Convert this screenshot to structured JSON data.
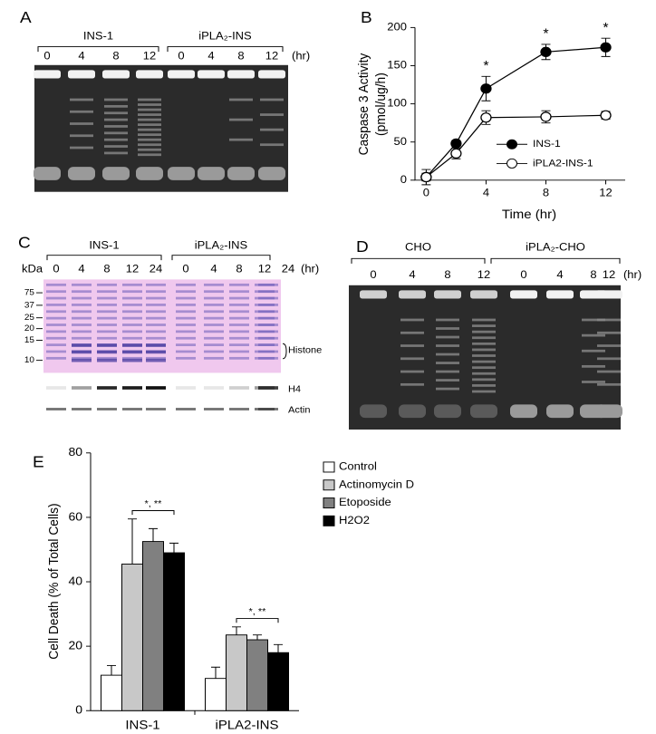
{
  "panel_letters": [
    "A",
    "B",
    "C",
    "D",
    "E"
  ],
  "gel_a": {
    "groups": [
      "INS-1",
      "iPLA₂-INS"
    ],
    "lanes": [
      "0",
      "4",
      "8",
      "12",
      "0",
      "4",
      "8",
      "12"
    ],
    "unit": "(hr)"
  },
  "gel_c": {
    "groups": [
      "INS-1",
      "iPLA₂-INS"
    ],
    "lanes": [
      "0",
      "4",
      "8",
      "12",
      "24",
      "0",
      "4",
      "8",
      "12",
      "24"
    ],
    "unit": "(hr)",
    "marker_unit": "kDa",
    "markers": [
      "75",
      "37",
      "25",
      "20",
      "15",
      "10"
    ],
    "labels": [
      "Histone",
      "H4",
      "Actin"
    ]
  },
  "gel_d": {
    "groups": [
      "CHO",
      "iPLA₂-CHO"
    ],
    "lanes": [
      "0",
      "4",
      "8",
      "12",
      "0",
      "4",
      "8",
      "12"
    ],
    "unit": "(hr)"
  },
  "chart_data": [
    {
      "type": "line",
      "x": [
        0,
        2,
        4,
        8,
        12
      ],
      "series": [
        {
          "name": "INS-1",
          "color": "#000000",
          "marker_fill": "#000000",
          "values": [
            4,
            48,
            120,
            168,
            174
          ],
          "errors": [
            10,
            4,
            16,
            10,
            12
          ]
        },
        {
          "name": "iPLA2-INS-1",
          "color": "#000000",
          "marker_fill": "#ffffff",
          "values": [
            4,
            35,
            82,
            83,
            85
          ],
          "errors": [
            5,
            7,
            9,
            8,
            5
          ]
        }
      ],
      "xlim": [
        -0.75,
        13.3
      ],
      "xticks": [
        0,
        4,
        8,
        12
      ],
      "ylim": [
        0,
        200
      ],
      "yticks": [
        0,
        50,
        100,
        150,
        200
      ],
      "xlabel": "Time (hr)",
      "ylabel": [
        "Caspase 3 Activity",
        "(pmol/ug/h)"
      ],
      "annotations": [
        {
          "text": "*",
          "x": 4
        },
        {
          "text": "*",
          "x": 8
        },
        {
          "text": "*",
          "x": 12
        }
      ]
    },
    {
      "type": "bar",
      "categories": [
        "INS-1",
        "iPLA2-INS"
      ],
      "series": [
        {
          "name": "Control",
          "color": "#ffffff",
          "values": [
            11,
            10
          ],
          "errors": [
            3,
            3.5
          ]
        },
        {
          "name": "Actinomycin D",
          "color": "#c8c8c8",
          "values": [
            45.5,
            23.5
          ],
          "errors": [
            14,
            2.5
          ]
        },
        {
          "name": "Etoposide",
          "color": "#808080",
          "values": [
            52.5,
            22
          ],
          "errors": [
            4,
            1.5
          ]
        },
        {
          "name": "H2O2",
          "color": "#000000",
          "values": [
            49,
            18
          ],
          "errors": [
            3,
            2.5
          ]
        }
      ],
      "ylim": [
        0,
        80
      ],
      "yticks": [
        0,
        20,
        40,
        60,
        80
      ],
      "ylabel": "Cell Death (% of Total Cells)",
      "annotations": [
        "*, **",
        "*, **"
      ]
    }
  ]
}
